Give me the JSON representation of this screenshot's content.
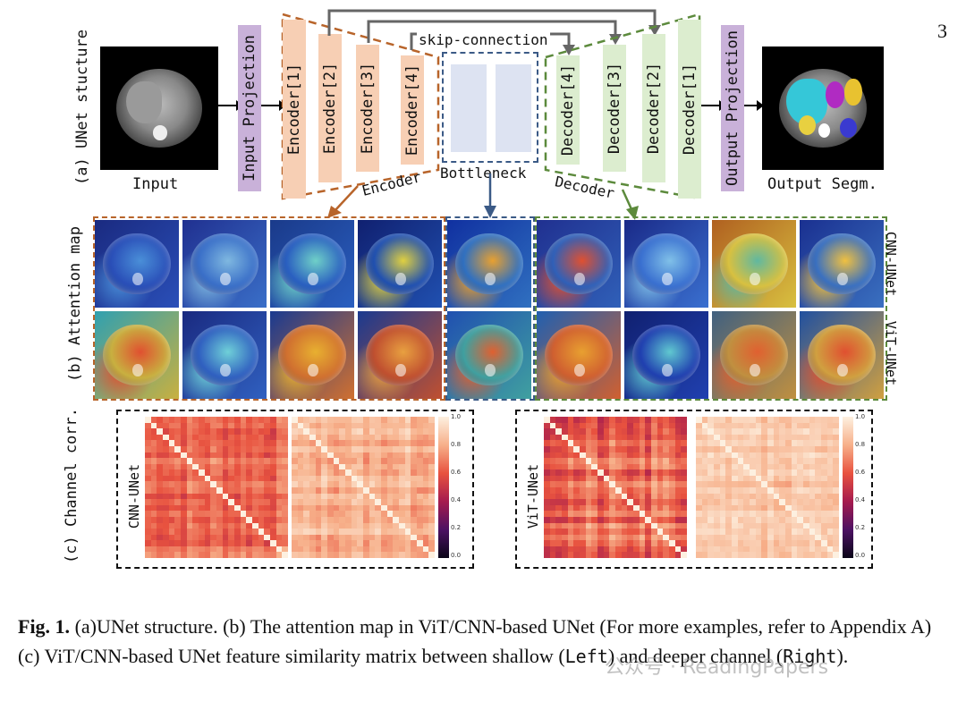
{
  "page_number": "3",
  "panel_a": {
    "side_label": "(a) UNet stucture",
    "input_label": "Input",
    "input_projection": "Input Projection",
    "encoders": [
      "Encoder[1]",
      "Encoder[2]",
      "Encoder[3]",
      "Encoder[4]"
    ],
    "decoders": [
      "Decoder[4]",
      "Decoder[3]",
      "Decoder[2]",
      "Decoder[1]"
    ],
    "skip_connection": "skip-connection",
    "encoder_label": "Encoder",
    "bottleneck_label": "Bottleneck",
    "decoder_label": "Decoder",
    "output_projection": "Output Projection",
    "output_label": "Output Segm."
  },
  "panel_b": {
    "side_label": "(b) Attention map",
    "row_labels": [
      "CNN-UNet",
      "ViT-UNet"
    ]
  },
  "panel_c": {
    "side_label": "(c) Channel corr.",
    "left_label": "CNN-UNet",
    "right_label": "ViT-UNet",
    "colorbar_ticks": [
      "1.0",
      "0.8",
      "0.6",
      "0.4",
      "0.2",
      "0.0"
    ]
  },
  "caption": {
    "fig": "Fig. 1.",
    "part1": " (a)UNet structure. (b) The attention map in ViT/CNN-based UNet (For more examples, refer to Appendix A) (c) ViT/CNN-based UNet feature similarity matrix between shallow (",
    "left": "Left",
    "part2": ") and deeper channel (",
    "right": "Right",
    "part3": ")."
  },
  "watermark": "公众号 · ReadingPapers",
  "colors": {
    "encoder": "#f7cfb4",
    "decoder": "#dcedcf",
    "projection": "#c9b1d9",
    "encoder_dash": "#b8642a",
    "bottleneck_dash": "#3b5a86",
    "decoder_dash": "#5c8a3c"
  }
}
